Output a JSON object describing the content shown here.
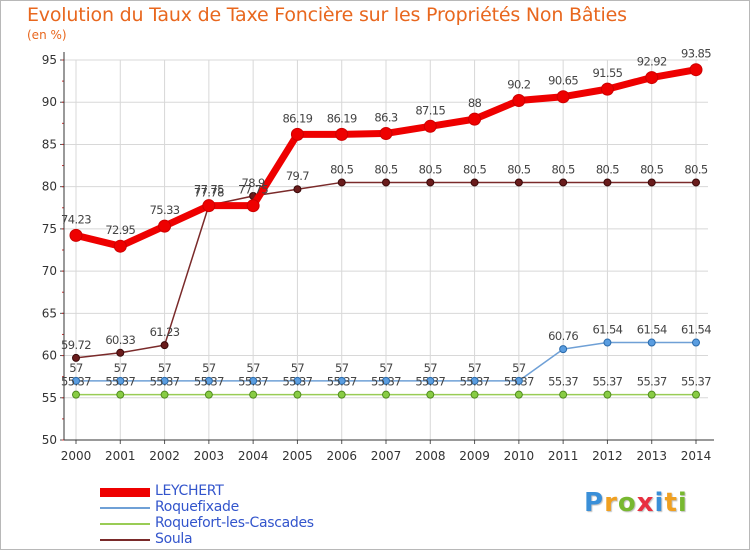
{
  "chart_data": {
    "type": "line",
    "title": "Evolution du Taux de Taxe Foncière sur les Propriétés Non Bâties",
    "subtitle": "(en %)",
    "x": [
      "2000",
      "2001",
      "2002",
      "2003",
      "2004",
      "2005",
      "2006",
      "2007",
      "2008",
      "2009",
      "2010",
      "2011",
      "2012",
      "2013",
      "2014"
    ],
    "ylim": [
      50,
      95
    ],
    "yticks": [
      50,
      55,
      60,
      65,
      70,
      75,
      80,
      85,
      90,
      95
    ],
    "grid": true,
    "legend_position": "bottom-left",
    "series": [
      {
        "name": "LEYCHERT",
        "color": "#ee0000",
        "values": [
          74.23,
          72.95,
          75.33,
          77.75,
          77.75,
          86.19,
          86.19,
          86.3,
          87.15,
          88,
          90.2,
          90.65,
          91.55,
          92.92,
          93.85
        ],
        "labels": [
          "74.23",
          "72.95",
          "75.33",
          "77.75",
          "77.75",
          "86.19",
          "86.19",
          "86.3",
          "87.15",
          "88",
          "90.2",
          "90.65",
          "91.55",
          "92.92",
          "93.85"
        ]
      },
      {
        "name": "Roquefixade",
        "color": "#6fa0d6",
        "values": [
          57,
          57,
          57,
          57,
          57,
          57,
          57,
          57,
          57,
          57,
          57,
          60.76,
          61.54,
          61.54,
          61.54
        ],
        "labels": [
          "57",
          "57",
          "57",
          "57",
          "57",
          "57",
          "57",
          "57",
          "57",
          "57",
          "57",
          "60.76",
          "61.54",
          "61.54",
          "61.54"
        ]
      },
      {
        "name": "Roquefort-les-Cascades",
        "color": "#99cc55",
        "values": [
          55.37,
          55.37,
          55.37,
          55.37,
          55.37,
          55.37,
          55.37,
          55.37,
          55.37,
          55.37,
          55.37,
          55.37,
          55.37,
          55.37,
          55.37
        ],
        "labels": [
          "55.37",
          "55.37",
          "55.37",
          "55.37",
          "55.37",
          "55.37",
          "55.37",
          "55.37",
          "55.37",
          "55.37",
          "55.37",
          "55.37",
          "55.37",
          "55.37",
          "55.37"
        ]
      },
      {
        "name": "Soula",
        "color": "#7a2a2a",
        "values": [
          59.72,
          60.33,
          61.23,
          77.78,
          78.9,
          79.7,
          80.5,
          80.5,
          80.5,
          80.5,
          80.5,
          80.5,
          80.5,
          80.5,
          80.5
        ],
        "labels": [
          "59.72",
          "60.33",
          "61.23",
          "77.78",
          "78.9",
          "79.7",
          "80.5",
          "80.5",
          "80.5",
          "80.5",
          "80.5",
          "80.5",
          "80.5",
          "80.5",
          "80.5"
        ]
      }
    ]
  },
  "brand": {
    "letters": [
      "P",
      "r",
      "o",
      "x",
      "i",
      "t",
      "i"
    ],
    "colors": [
      "#3a8fd8",
      "#f0a020",
      "#78b830",
      "#e83040",
      "#3a8fd8",
      "#f0a020",
      "#78b830"
    ]
  }
}
